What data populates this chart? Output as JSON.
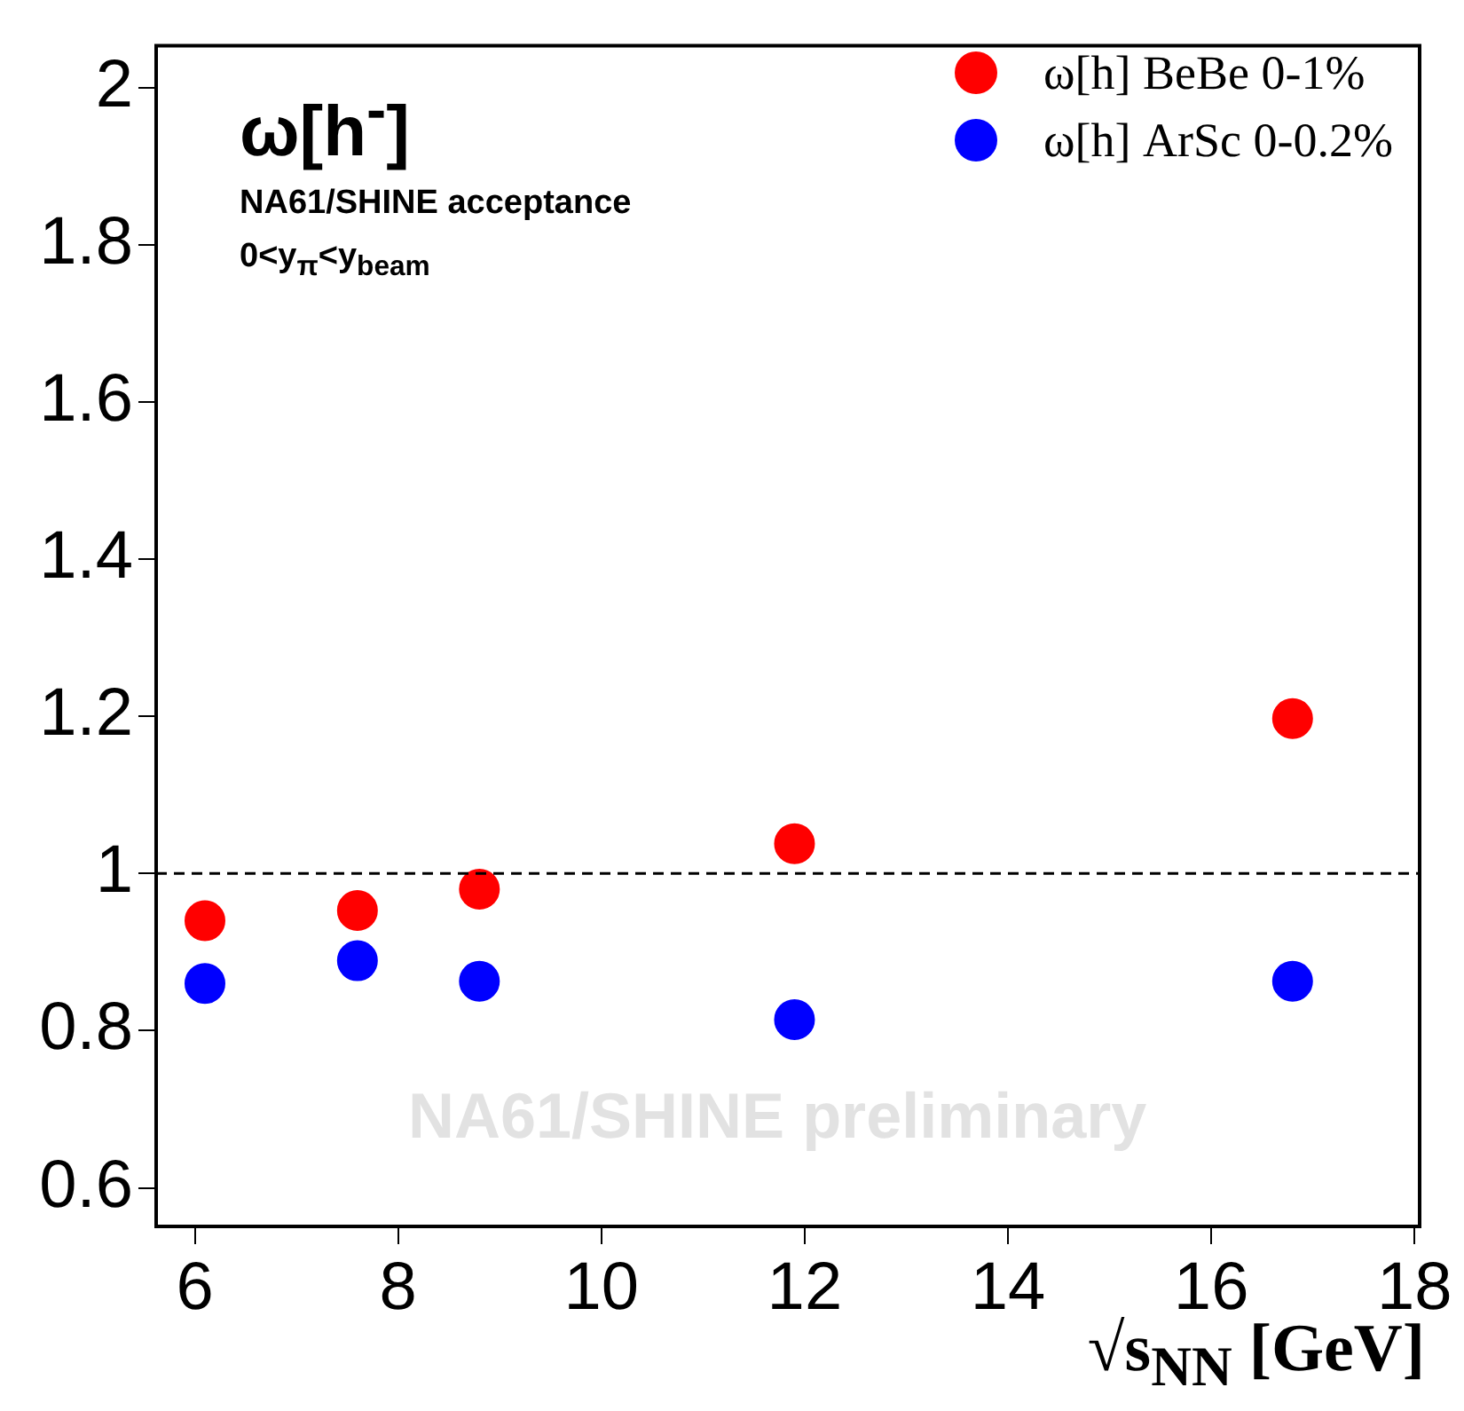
{
  "chart_data": {
    "type": "scatter",
    "title": "ω[h$^{-}$]",
    "xlabel": "√s$_{NN}$ [GeV]",
    "x": [
      6.1,
      7.6,
      8.8,
      11.9,
      16.8
    ],
    "series": [
      {
        "name": "ω[h] BeBe 0-1%",
        "color": "#ff0000",
        "values": [
          0.94,
          0.953,
          0.98,
          1.038,
          1.197
        ]
      },
      {
        "name": "ω[h] ArSc 0-0.2%",
        "color": "#0000ff",
        "values": [
          0.86,
          0.889,
          0.863,
          0.814,
          0.863
        ]
      }
    ],
    "xlim": [
      5.62,
      18.05
    ],
    "xticks": [
      6,
      8,
      10,
      12,
      14,
      16,
      18
    ],
    "ylim": [
      0.551,
      2.053
    ],
    "yticks": [
      0.6,
      0.8,
      1,
      1.2,
      1.4,
      1.6,
      1.8,
      2
    ],
    "ref_lines": [
      {
        "axis": "y",
        "value": 1,
        "line_style": "dashed",
        "color": "#000000"
      }
    ],
    "annotations": [
      "NA61/SHINE acceptance",
      "0<y$_{π}$<y$_{beam}$",
      "NA61/SHINE preliminary"
    ],
    "legend": "top right",
    "grid": false,
    "marker": "circle"
  }
}
